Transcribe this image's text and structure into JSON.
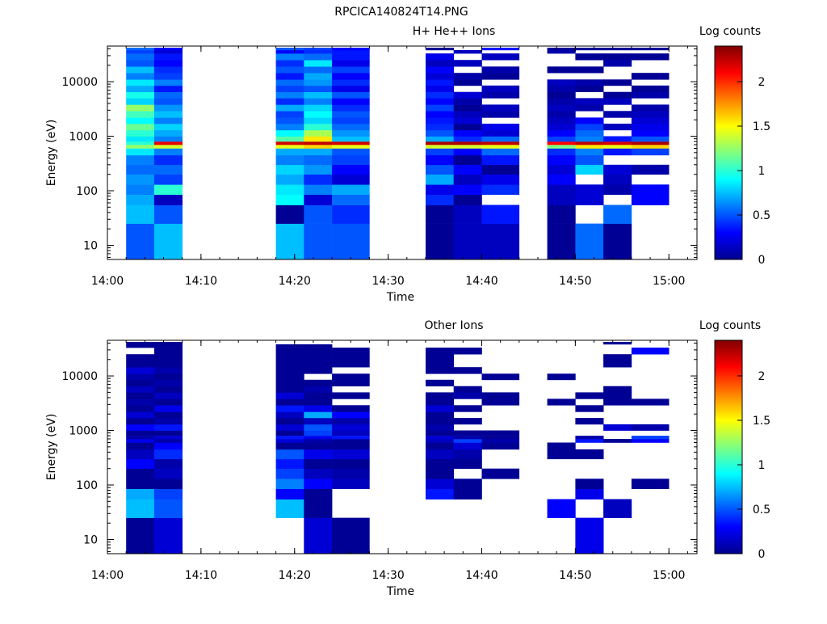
{
  "figure_title": "RPCICA140824T14.PNG",
  "chart_data": [
    {
      "type": "heatmap",
      "title": "H+ He++ Ions",
      "xlabel": "Time",
      "ylabel": "Energy (eV)",
      "x_ticks": [
        "14:00",
        "14:10",
        "14:20",
        "14:30",
        "14:40",
        "14:50",
        "15:00"
      ],
      "x_range": [
        "14:00",
        "15:03"
      ],
      "y_scale": "log",
      "y_ticks": [
        10,
        100,
        1000,
        10000
      ],
      "y_range": [
        5.5,
        45000
      ],
      "colorbar": {
        "label": "Log counts",
        "range": [
          0,
          2.4
        ],
        "ticks": [
          0,
          0.5,
          1,
          1.5,
          2
        ]
      },
      "time_bins": [
        [
          "14:02",
          "14:05"
        ],
        [
          "14:05",
          "14:08"
        ],
        [
          "14:18",
          "14:21"
        ],
        [
          "14:21",
          "14:24"
        ],
        [
          "14:24",
          "14:28"
        ],
        [
          "14:34",
          "14:37"
        ],
        [
          "14:37",
          "14:40"
        ],
        [
          "14:40",
          "14:44"
        ],
        [
          "14:47",
          "14:50"
        ],
        [
          "14:50",
          "14:53"
        ],
        [
          "14:53",
          "14:56"
        ],
        [
          "14:56",
          "15:00"
        ]
      ],
      "rows": [
        {
          "e_lo": 5.5,
          "e_hi": 25,
          "values": [
            0.5,
            0.75,
            0.75,
            0.5,
            0.5,
            0.05,
            0.15,
            0.15,
            0.05,
            0.55,
            0.05,
            null
          ]
        },
        {
          "e_lo": 25,
          "e_hi": 55,
          "values": [
            0.75,
            0.5,
            0.05,
            0.5,
            0.4,
            0.05,
            0.15,
            0.35,
            0.05,
            null,
            0.55,
            null
          ]
        },
        {
          "e_lo": 55,
          "e_hi": 85,
          "values": [
            0.7,
            0.15,
            0.9,
            0.2,
            0.55,
            0.4,
            0.05,
            null,
            0.15,
            0.2,
            null,
            0.3
          ]
        },
        {
          "e_lo": 85,
          "e_hi": 130,
          "values": [
            0.6,
            1.0,
            0.85,
            0.6,
            0.7,
            0.25,
            0.3,
            0.4,
            0.15,
            0.2,
            0.1,
            0.3
          ]
        },
        {
          "e_lo": 130,
          "e_hi": 200,
          "values": [
            0.65,
            0.45,
            0.7,
            0.4,
            0.2,
            0.7,
            0.15,
            0.25,
            0.3,
            null,
            0.15,
            null
          ]
        },
        {
          "e_lo": 200,
          "e_hi": 300,
          "values": [
            0.55,
            0.55,
            0.8,
            0.65,
            0.3,
            0.5,
            0.3,
            0.05,
            0.2,
            0.8,
            0.2,
            0.1
          ]
        },
        {
          "e_lo": 300,
          "e_hi": 450,
          "values": [
            0.6,
            0.4,
            0.6,
            0.55,
            0.45,
            0.3,
            0.05,
            0.35,
            0.3,
            0.5,
            null,
            null
          ]
        },
        {
          "e_lo": 450,
          "e_hi": 600,
          "values": [
            0.85,
            0.6,
            0.7,
            0.7,
            0.5,
            0.45,
            0.3,
            0.55,
            0.4,
            0.6,
            0.35,
            0.45
          ]
        },
        {
          "e_lo": 600,
          "e_hi": 700,
          "values": [
            1.25,
            1.4,
            1.45,
            1.6,
            1.45,
            1.4,
            1.4,
            1.45,
            1.2,
            1.55,
            1.45,
            1.6
          ]
        },
        {
          "e_lo": 700,
          "e_hi": 800,
          "values": [
            1.0,
            2.15,
            2.2,
            2.25,
            2.2,
            2.3,
            2.3,
            2.25,
            2.1,
            2.25,
            2.2,
            2.3
          ]
        },
        {
          "e_lo": 800,
          "e_hi": 1000,
          "values": [
            0.85,
            0.6,
            1.1,
            1.55,
            0.75,
            0.7,
            0.4,
            0.55,
            0.45,
            0.6,
            0.35,
            0.5
          ]
        },
        {
          "e_lo": 1000,
          "e_hi": 1300,
          "values": [
            1.0,
            0.7,
            0.9,
            1.3,
            0.65,
            0.5,
            0.3,
            0.2,
            0.3,
            0.55,
            null,
            0.3
          ]
        },
        {
          "e_lo": 1300,
          "e_hi": 1700,
          "values": [
            1.15,
            0.8,
            0.6,
            1.0,
            0.55,
            0.4,
            0.05,
            0.25,
            0.2,
            0.45,
            0.15,
            0.25
          ]
        },
        {
          "e_lo": 1700,
          "e_hi": 2200,
          "values": [
            0.9,
            0.6,
            0.5,
            0.8,
            0.45,
            0.35,
            0.2,
            null,
            0.15,
            0.3,
            null,
            0.2
          ]
        },
        {
          "e_lo": 2200,
          "e_hi": 2900,
          "values": [
            1.05,
            0.75,
            0.45,
            0.9,
            0.5,
            0.3,
            0.15,
            0.1,
            0.1,
            null,
            0.1,
            0.15
          ]
        },
        {
          "e_lo": 2900,
          "e_hi": 3800,
          "values": [
            1.25,
            0.65,
            0.7,
            0.8,
            0.4,
            0.45,
            0.05,
            0.15,
            0.15,
            0.1,
            null,
            0.1
          ]
        },
        {
          "e_lo": 3800,
          "e_hi": 5000,
          "values": [
            0.8,
            0.5,
            0.4,
            0.6,
            0.3,
            0.3,
            0.1,
            null,
            0.1,
            0.15,
            0.15,
            null
          ]
        },
        {
          "e_lo": 5000,
          "e_hi": 6500,
          "values": [
            0.95,
            0.55,
            0.6,
            0.75,
            0.5,
            0.4,
            0.2,
            0.1,
            0.05,
            null,
            0.05,
            0.1
          ]
        },
        {
          "e_lo": 6500,
          "e_hi": 8500,
          "values": [
            0.7,
            0.35,
            0.45,
            0.5,
            0.25,
            0.25,
            null,
            0.15,
            0.1,
            0.05,
            null,
            0.05
          ]
        },
        {
          "e_lo": 8500,
          "e_hi": 11000,
          "values": [
            0.85,
            0.6,
            0.55,
            0.65,
            0.4,
            0.35,
            0.05,
            null,
            0.15,
            0.1,
            0.05,
            null
          ]
        },
        {
          "e_lo": 11000,
          "e_hi": 14500,
          "values": [
            0.6,
            0.45,
            0.35,
            0.7,
            0.3,
            0.2,
            0.1,
            0.05,
            null,
            null,
            null,
            0.05
          ]
        },
        {
          "e_lo": 14500,
          "e_hi": 19000,
          "values": [
            0.75,
            0.4,
            0.5,
            0.55,
            0.45,
            0.3,
            null,
            0.1,
            0.05,
            0.05,
            null,
            null
          ]
        },
        {
          "e_lo": 19000,
          "e_hi": 25000,
          "values": [
            0.5,
            0.3,
            0.4,
            0.85,
            0.25,
            0.15,
            0.15,
            null,
            null,
            null,
            0.1,
            null
          ]
        },
        {
          "e_lo": 25000,
          "e_hi": 33000,
          "values": [
            0.55,
            0.35,
            0.6,
            0.55,
            0.35,
            0.25,
            null,
            0.15,
            null,
            0.05,
            0.05,
            0.05
          ]
        },
        {
          "e_lo": 33000,
          "e_hi": 38000,
          "values": [
            0.45,
            0.2,
            0.3,
            0.4,
            0.35,
            null,
            0.15,
            null,
            0.1,
            null,
            null,
            null
          ]
        },
        {
          "e_lo": 38000,
          "e_hi": 42000,
          "values": [
            0.55,
            0.3,
            0.5,
            0.45,
            0.3,
            0.05,
            null,
            0.35,
            0.05,
            0.05,
            0.05,
            0.05
          ]
        }
      ]
    },
    {
      "type": "heatmap",
      "title": "Other Ions",
      "xlabel": "Time",
      "ylabel": "Energy (eV)",
      "x_ticks": [
        "14:00",
        "14:10",
        "14:20",
        "14:30",
        "14:40",
        "14:50",
        "15:00"
      ],
      "x_range": [
        "14:00",
        "15:03"
      ],
      "y_scale": "log",
      "y_ticks": [
        10,
        100,
        1000,
        10000
      ],
      "y_range": [
        5.5,
        45000
      ],
      "colorbar": {
        "label": "Log counts",
        "range": [
          0,
          2.4
        ],
        "ticks": [
          0,
          0.5,
          1,
          1.5,
          2
        ]
      },
      "time_bins": [
        [
          "14:02",
          "14:05"
        ],
        [
          "14:05",
          "14:08"
        ],
        [
          "14:18",
          "14:21"
        ],
        [
          "14:21",
          "14:24"
        ],
        [
          "14:24",
          "14:28"
        ],
        [
          "14:34",
          "14:37"
        ],
        [
          "14:37",
          "14:40"
        ],
        [
          "14:40",
          "14:44"
        ],
        [
          "14:47",
          "14:50"
        ],
        [
          "14:50",
          "14:53"
        ],
        [
          "14:53",
          "14:56"
        ],
        [
          "14:56",
          "15:00"
        ]
      ],
      "rows": [
        {
          "e_lo": 5.5,
          "e_hi": 25,
          "values": [
            0.05,
            0.2,
            null,
            0.2,
            0.05,
            null,
            null,
            null,
            null,
            0.25,
            null,
            null
          ]
        },
        {
          "e_lo": 25,
          "e_hi": 55,
          "values": [
            0.75,
            0.5,
            0.75,
            0.05,
            null,
            null,
            null,
            null,
            0.3,
            null,
            0.15,
            null
          ]
        },
        {
          "e_lo": 55,
          "e_hi": 85,
          "values": [
            0.7,
            0.45,
            0.3,
            0.05,
            null,
            0.35,
            0.05,
            null,
            null,
            0.25,
            null,
            null
          ]
        },
        {
          "e_lo": 85,
          "e_hi": 130,
          "values": [
            0.05,
            0.05,
            0.6,
            0.3,
            0.15,
            0.2,
            0.05,
            null,
            null,
            0.05,
            null,
            0.05
          ]
        },
        {
          "e_lo": 130,
          "e_hi": 200,
          "values": [
            0.05,
            0.15,
            0.45,
            0.15,
            0.1,
            0.05,
            null,
            0.05,
            null,
            null,
            null,
            null
          ]
        },
        {
          "e_lo": 200,
          "e_hi": 300,
          "values": [
            0.3,
            0.1,
            0.35,
            0.05,
            0.05,
            0.05,
            0.05,
            null,
            null,
            null,
            null,
            null
          ]
        },
        {
          "e_lo": 300,
          "e_hi": 450,
          "values": [
            0.15,
            0.4,
            0.5,
            0.25,
            0.2,
            0.15,
            0.1,
            null,
            0.05,
            0.05,
            null,
            null
          ]
        },
        {
          "e_lo": 450,
          "e_hi": 600,
          "values": [
            0.05,
            0.3,
            0.05,
            0.05,
            0.05,
            0.05,
            0.2,
            0.05,
            0.05,
            null,
            null,
            null
          ]
        },
        {
          "e_lo": 600,
          "e_hi": 700,
          "values": [
            0.25,
            0.1,
            0.2,
            0.1,
            0.05,
            0.15,
            0.45,
            0.1,
            null,
            0.35,
            0.05,
            0.3
          ]
        },
        {
          "e_lo": 700,
          "e_hi": 800,
          "values": [
            0.1,
            0.2,
            0.35,
            0.25,
            0.35,
            0.2,
            0.1,
            0.05,
            null,
            0.1,
            null,
            0.45
          ]
        },
        {
          "e_lo": 800,
          "e_hi": 1000,
          "values": [
            0.05,
            0.05,
            0.05,
            0.45,
            0.15,
            0.05,
            0.05,
            0.05,
            null,
            null,
            null,
            null
          ]
        },
        {
          "e_lo": 1000,
          "e_hi": 1300,
          "values": [
            0.3,
            0.35,
            0.2,
            0.5,
            0.2,
            0.1,
            null,
            null,
            null,
            null,
            0.2,
            0.1
          ]
        },
        {
          "e_lo": 1300,
          "e_hi": 1700,
          "values": [
            0.05,
            0.1,
            0.05,
            0.15,
            0.1,
            0.05,
            0.05,
            null,
            null,
            0.05,
            null,
            null
          ]
        },
        {
          "e_lo": 1700,
          "e_hi": 2200,
          "values": [
            0.2,
            0.05,
            0.15,
            0.7,
            0.3,
            0.05,
            null,
            null,
            null,
            null,
            null,
            null
          ]
        },
        {
          "e_lo": 2200,
          "e_hi": 2900,
          "values": [
            0.05,
            0.25,
            0.35,
            0.25,
            0.05,
            0.2,
            0.05,
            null,
            null,
            0.05,
            null,
            null
          ]
        },
        {
          "e_lo": 2900,
          "e_hi": 3800,
          "values": [
            0.1,
            0.05,
            0.05,
            0.05,
            null,
            0.05,
            null,
            0.05,
            0.05,
            null,
            0.05,
            0.05
          ]
        },
        {
          "e_lo": 3800,
          "e_hi": 5000,
          "values": [
            0.05,
            0.15,
            0.2,
            0.05,
            0.05,
            0.05,
            0.1,
            0.05,
            null,
            0.05,
            0.05,
            null
          ]
        },
        {
          "e_lo": 5000,
          "e_hi": 6500,
          "values": [
            0.15,
            0.05,
            0.05,
            0.1,
            null,
            null,
            0.05,
            null,
            null,
            null,
            0.05,
            null
          ]
        },
        {
          "e_lo": 6500,
          "e_hi": 8500,
          "values": [
            0.05,
            0.1,
            0.05,
            0.05,
            0.05,
            0.05,
            null,
            null,
            null,
            null,
            null,
            null
          ]
        },
        {
          "e_lo": 8500,
          "e_hi": 11000,
          "values": [
            0.1,
            0.05,
            0.05,
            null,
            0.05,
            null,
            null,
            0.05,
            0.05,
            null,
            null,
            null
          ]
        },
        {
          "e_lo": 11000,
          "e_hi": 14500,
          "values": [
            0.2,
            0.1,
            0.05,
            0.05,
            null,
            0.05,
            0.05,
            null,
            null,
            null,
            null,
            null
          ]
        },
        {
          "e_lo": 14500,
          "e_hi": 19000,
          "values": [
            0.05,
            0.05,
            0.05,
            0.05,
            0.05,
            0.05,
            null,
            null,
            null,
            null,
            0.05,
            null
          ]
        },
        {
          "e_lo": 19000,
          "e_hi": 25000,
          "values": [
            0.05,
            0.05,
            0.05,
            0.05,
            0.05,
            0.05,
            null,
            null,
            null,
            null,
            0.05,
            null
          ]
        },
        {
          "e_lo": 25000,
          "e_hi": 33000,
          "values": [
            null,
            0.05,
            0.05,
            0.05,
            0.05,
            0.05,
            0.05,
            null,
            null,
            null,
            null,
            0.3
          ]
        },
        {
          "e_lo": 33000,
          "e_hi": 38000,
          "values": [
            0.05,
            0.05,
            0.05,
            0.05,
            null,
            null,
            null,
            null,
            null,
            null,
            null,
            null
          ]
        },
        {
          "e_lo": 38000,
          "e_hi": 42000,
          "values": [
            0.05,
            0.05,
            null,
            null,
            null,
            null,
            null,
            null,
            null,
            null,
            0.05,
            null
          ]
        }
      ]
    }
  ]
}
